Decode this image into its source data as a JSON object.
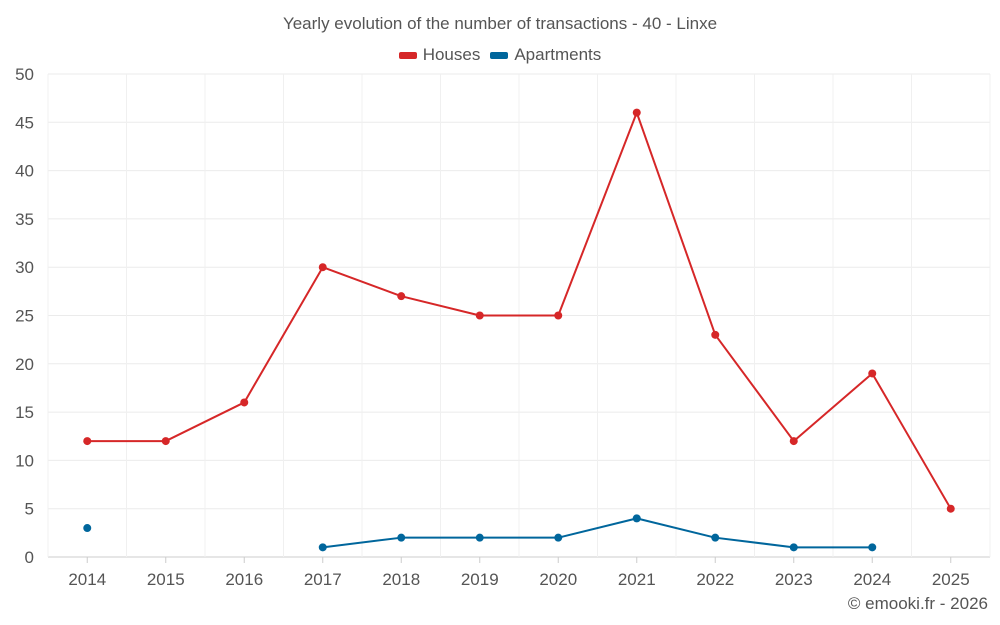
{
  "chart_data": {
    "type": "line",
    "title": "Yearly evolution of the number of transactions - 40 - Linxe",
    "xlabel": "",
    "ylabel": "",
    "categories": [
      "2014",
      "2015",
      "2016",
      "2017",
      "2018",
      "2019",
      "2020",
      "2021",
      "2022",
      "2023",
      "2024",
      "2025"
    ],
    "ylim": [
      0,
      50
    ],
    "yticks": [
      0,
      5,
      10,
      15,
      20,
      25,
      30,
      35,
      40,
      45,
      50
    ],
    "grid": true,
    "legend_position": "top-center",
    "series": [
      {
        "name": "Houses",
        "color": "#d62728",
        "values": [
          12,
          12,
          16,
          30,
          27,
          25,
          25,
          46,
          23,
          12,
          19,
          5
        ]
      },
      {
        "name": "Apartments",
        "color": "#00669c",
        "values": [
          3,
          null,
          null,
          1,
          2,
          2,
          2,
          4,
          2,
          1,
          1,
          null
        ]
      }
    ]
  },
  "credit": "© emooki.fr - 2026"
}
